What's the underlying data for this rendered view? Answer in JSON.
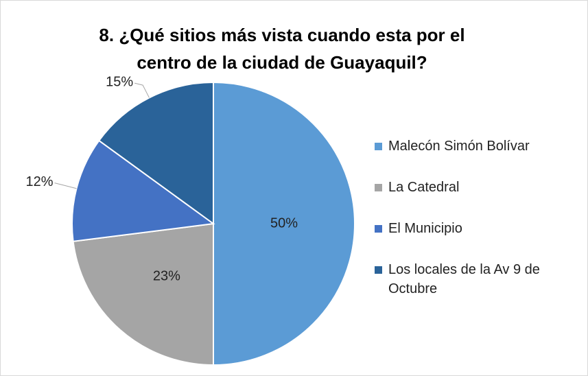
{
  "chart_data": {
    "type": "pie",
    "title": "8. ¿Qué sitios más vista cuando esta por el centro de la ciudad de Guayaquil?",
    "categories": [
      "Malecón Simón Bolívar",
      "La Catedral",
      "El Municipio",
      "Los locales de la Av 9 de Octubre"
    ],
    "values": [
      50,
      23,
      12,
      15
    ],
    "value_labels": [
      "50%",
      "23%",
      "12%",
      "15%"
    ],
    "colors": [
      "#5b9bd5",
      "#a5a5a5",
      "#4472c4",
      "#2a6399"
    ],
    "legend": "right"
  }
}
